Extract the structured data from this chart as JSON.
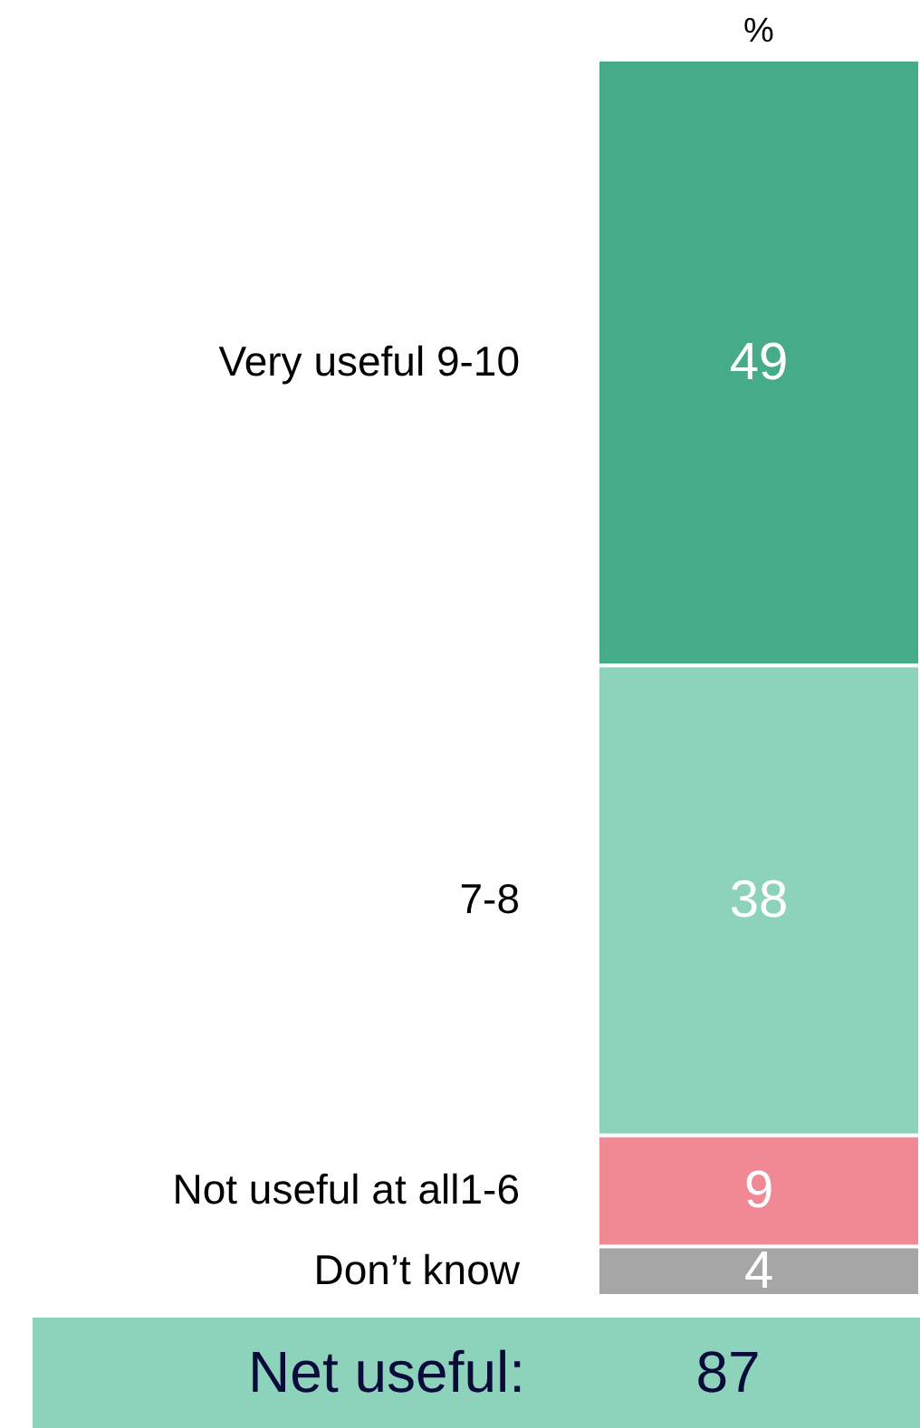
{
  "chart_data": {
    "type": "bar",
    "stacked": true,
    "categories": [
      null
    ],
    "series": [
      {
        "name": "Don’t know",
        "color": "#a6a6a6",
        "values": [
          4
        ]
      },
      {
        "name": "Not useful at all1-6",
        "color": "#f08993",
        "values": [
          9
        ]
      },
      {
        "name": "7-8",
        "color": "#8dd2ba",
        "values": [
          38
        ]
      },
      {
        "name": "Very useful 9-10",
        "color": "#46ab89",
        "values": [
          49
        ]
      }
    ],
    "data_labels": true,
    "ylabel": "%",
    "tick_labels": false,
    "annotations": [
      "Net useful:",
      "87"
    ]
  }
}
